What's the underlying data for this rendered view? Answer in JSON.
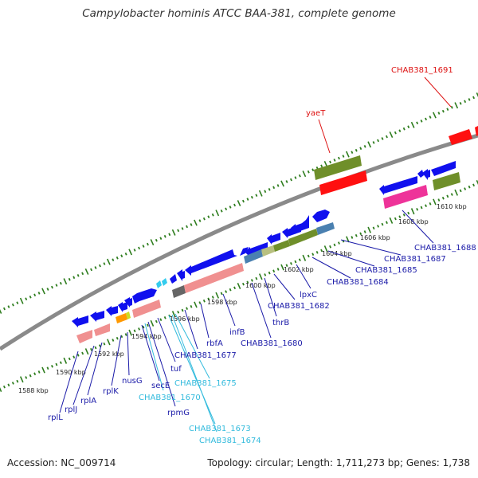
{
  "title": "Campylobacter hominis ATCC BAA-381, complete genome",
  "footer": {
    "accession": "Accession: NC_009714",
    "summary": "Topology: circular; Length: 1,711,273 bp; Genes: 1,738"
  },
  "colors": {
    "backbone": "#8a8a8a",
    "tick": "#2e7d1e",
    "label_blue": "#1a1aa8",
    "label_cyan": "#33bbdd",
    "label_red": "#dd1111",
    "cds_blue": "#1010ee",
    "rna_cyan": "#33ccee",
    "salmon": "#f09090",
    "olive": "#6f8f2a",
    "steel": "#4a80b0",
    "red": "#ff1010",
    "magenta": "#ee3399",
    "grey": "#666666"
  },
  "ruler": {
    "labels": [
      "1588 kbp",
      "1590 kbp",
      "1592 kbp",
      "1594 kbp",
      "1596 kbp",
      "1598 kbp",
      "1600 kbp",
      "1602 kbp",
      "1604 kbp",
      "1606 kbp",
      "1608 kbp",
      "1610 kbp"
    ]
  },
  "genes": [
    {
      "label": "rplL",
      "color": "blue"
    },
    {
      "label": "rplJ",
      "color": "blue"
    },
    {
      "label": "rplA",
      "color": "blue"
    },
    {
      "label": "rplK",
      "color": "blue"
    },
    {
      "label": "nusG",
      "color": "blue"
    },
    {
      "label": "secE",
      "color": "blue"
    },
    {
      "label": "CHAB381_1670",
      "color": "cyan"
    },
    {
      "label": "rpmG",
      "color": "blue"
    },
    {
      "label": "tuf",
      "color": "blue"
    },
    {
      "label": "CHAB381_1673",
      "color": "cyan"
    },
    {
      "label": "CHAB381_1674",
      "color": "cyan"
    },
    {
      "label": "CHAB381_1675",
      "color": "cyan"
    },
    {
      "label": "CHAB381_1677",
      "color": "blue"
    },
    {
      "label": "rbfA",
      "color": "blue"
    },
    {
      "label": "infB",
      "color": "blue"
    },
    {
      "label": "CHAB381_1680",
      "color": "blue"
    },
    {
      "label": "thrB",
      "color": "blue"
    },
    {
      "label": "CHAB381_1682",
      "color": "blue"
    },
    {
      "label": "lpxC",
      "color": "blue"
    },
    {
      "label": "CHAB381_1684",
      "color": "blue"
    },
    {
      "label": "CHAB381_1685",
      "color": "blue"
    },
    {
      "label": "CHAB381_1687",
      "color": "blue"
    },
    {
      "label": "CHAB381_1688",
      "color": "blue"
    },
    {
      "label": "yaeT",
      "color": "red"
    },
    {
      "label": "CHAB381_1691",
      "color": "red"
    }
  ]
}
